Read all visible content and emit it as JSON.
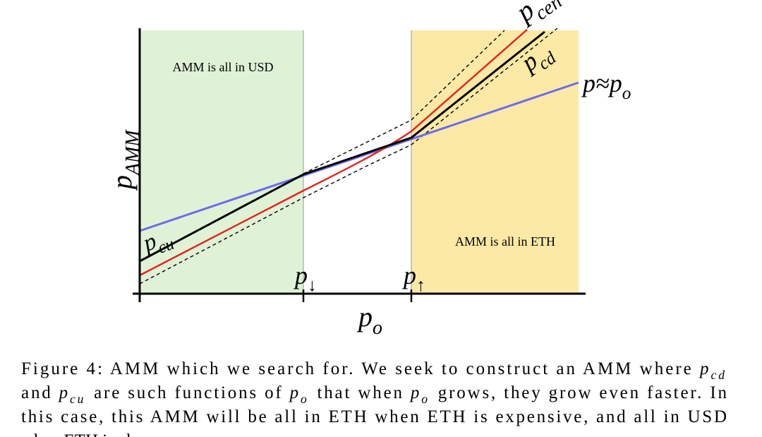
{
  "figure": {
    "regions": {
      "left": "AMM is all in USD",
      "right": "AMM is all in ETH"
    },
    "y_label": [
      {
        "text": "p",
        "sub": "AMM",
        "style": "math"
      }
    ],
    "x_label": [
      {
        "text": "p",
        "sub": "o",
        "style": "math"
      }
    ],
    "curve_labels": {
      "cen": [
        {
          "text": "p",
          "sub": "cen",
          "style": "math"
        }
      ],
      "cd": [
        {
          "text": "p",
          "sub": "cd",
          "style": "math"
        }
      ],
      "cu": [
        {
          "text": "p",
          "sub": "cu",
          "style": "math"
        }
      ],
      "identity": [
        {
          "text": "p≈p",
          "sub": "o",
          "style": "math"
        }
      ]
    },
    "ticks": {
      "down": [
        {
          "text": "p",
          "sub": "↓",
          "style": "math"
        }
      ],
      "up": [
        {
          "text": "p",
          "sub": "↑",
          "style": "math"
        }
      ]
    },
    "caption": [
      [
        {
          "text": "Figure 4: AMM which we search for. We seek to construct an AMM where "
        },
        {
          "text": "p",
          "sub": "cd",
          "style": "math"
        }
      ],
      [
        {
          "text": "and "
        },
        {
          "text": "p",
          "sub": "cu",
          "style": "math"
        },
        {
          "text": " are such functions of "
        },
        {
          "text": "p",
          "sub": "o",
          "style": "math"
        },
        {
          "text": " that when "
        },
        {
          "text": "p",
          "sub": "o",
          "style": "math"
        },
        {
          "text": " grows, they grow even faster. In"
        }
      ],
      [
        {
          "text": "this case, this AMM will be all in ETH when ETH is expensive, and all in USD"
        }
      ],
      [
        {
          "text": "when ETH is cheap."
        }
      ]
    ]
  }
}
